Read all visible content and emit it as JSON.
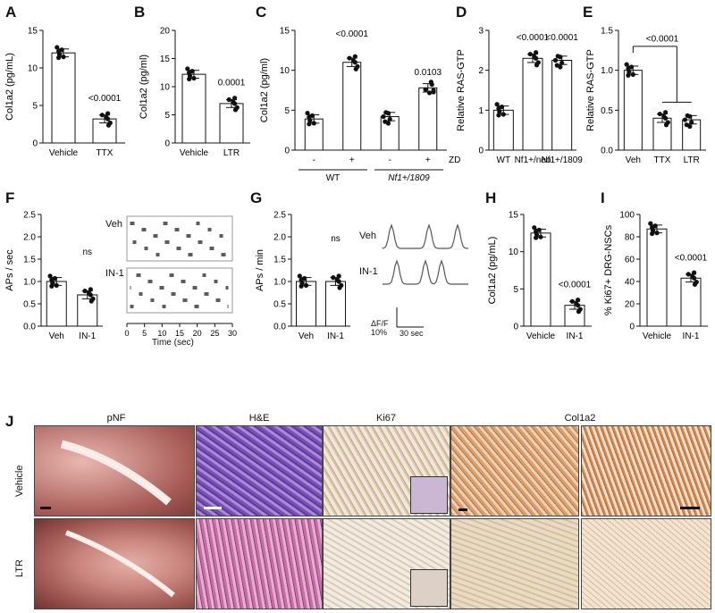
{
  "panels": {
    "A": {
      "label": "A",
      "ylabel": "Col1a2 (pg/mL)",
      "yticks": [
        "0",
        "5",
        "10",
        "15"
      ],
      "categories": [
        "Vehicle",
        "TTX"
      ],
      "pvalue": "<0.0001"
    },
    "B": {
      "label": "B",
      "ylabel": "Col1a2 (pg/ml)",
      "yticks": [
        "0",
        "5",
        "10",
        "15",
        "20"
      ],
      "categories": [
        "Vehicle",
        "LTR"
      ],
      "pvalue": "0.0001"
    },
    "C": {
      "label": "C",
      "ylabel": "Col1a2 (pg/ml)",
      "yticks": [
        "0",
        "5",
        "10",
        "15"
      ],
      "pvalues": [
        "<0.0001",
        "0.0103"
      ],
      "zd_signs": [
        "-",
        "+",
        "-",
        "+"
      ],
      "zd_label": "ZD",
      "groups": [
        "WT",
        "Nf1+/1809"
      ]
    },
    "D": {
      "label": "D",
      "ylabel": "Relative RAS-GTP",
      "yticks": [
        "0",
        "1",
        "2",
        "3"
      ],
      "categories": [
        "WT",
        "Nf1+/neo",
        "Nf1+/1809"
      ],
      "pvalues": [
        "<0.0001",
        "<0.0001"
      ]
    },
    "E": {
      "label": "E",
      "ylabel": "Relative RAS-GTP",
      "yticks": [
        "0.0",
        "0.5",
        "1.0",
        "1.5"
      ],
      "categories": [
        "Veh",
        "TTX",
        "LTR"
      ],
      "pvalue": "<0.0001"
    },
    "F": {
      "label": "F",
      "ylabel": "APs / sec",
      "yticks": [
        "0.0",
        "0.5",
        "1.0",
        "1.5",
        "2.0",
        "2.5"
      ],
      "categories": [
        "Veh",
        "IN-1"
      ],
      "sig": "ns",
      "raster_labels": [
        "Veh",
        "IN-1"
      ],
      "raster_xticks": [
        "0",
        "5",
        "10",
        "15",
        "20",
        "25",
        "30"
      ],
      "raster_xlabel": "Time (sec)"
    },
    "G": {
      "label": "G",
      "ylabel": "APs / min",
      "yticks": [
        "0.0",
        "0.5",
        "1.0",
        "1.5",
        "2.0",
        "2.5"
      ],
      "categories": [
        "Veh",
        "IN-1"
      ],
      "sig": "ns",
      "trace_labels": [
        "Veh",
        "IN-1"
      ],
      "scale_y": "ΔF/F 10%",
      "scale_x": "30 sec"
    },
    "H": {
      "label": "H",
      "ylabel": "Col1a2 (pg/mL)",
      "yticks": [
        "0",
        "5",
        "10",
        "15"
      ],
      "categories": [
        "Vehicle",
        "IN-1"
      ],
      "pvalue": "<0.0001"
    },
    "I": {
      "label": "I",
      "ylabel": "% Ki67+ DRG-NSCs",
      "yticks": [
        "0",
        "20",
        "40",
        "60",
        "80",
        "100"
      ],
      "categories": [
        "Vehicle",
        "IN-1"
      ],
      "pvalue": "<0.0001"
    },
    "J": {
      "label": "J",
      "columns": [
        "pNF",
        "H&E",
        "Ki67",
        "Col1a2"
      ],
      "rows": [
        "Vehicle",
        "LTR"
      ]
    }
  },
  "chart_data": [
    {
      "panel": "A",
      "type": "bar",
      "categories": [
        "Vehicle",
        "TTX"
      ],
      "values": [
        12.0,
        3.2
      ],
      "ylabel": "Col1a2 (pg/mL)",
      "ylim": [
        0,
        15
      ]
    },
    {
      "panel": "B",
      "type": "bar",
      "categories": [
        "Vehicle",
        "LTR"
      ],
      "values": [
        12.2,
        7.0
      ],
      "ylabel": "Col1a2 (pg/ml)",
      "ylim": [
        0,
        20
      ]
    },
    {
      "panel": "C",
      "type": "bar",
      "categories": [
        "WT -",
        "WT +",
        "Nf1 -",
        "Nf1 +"
      ],
      "values": [
        3.9,
        11.0,
        4.2,
        7.8
      ],
      "ylabel": "Col1a2 (pg/ml)",
      "ylim": [
        0,
        15
      ]
    },
    {
      "panel": "D",
      "type": "bar",
      "categories": [
        "WT",
        "Nf1+/neo",
        "Nf1+/1809"
      ],
      "values": [
        1.0,
        2.3,
        2.25
      ],
      "ylabel": "Relative RAS-GTP",
      "ylim": [
        0,
        3
      ]
    },
    {
      "panel": "E",
      "type": "bar",
      "categories": [
        "Veh",
        "TTX",
        "LTR"
      ],
      "values": [
        1.0,
        0.4,
        0.38
      ],
      "ylabel": "Relative RAS-GTP",
      "ylim": [
        0,
        1.5
      ]
    },
    {
      "panel": "F",
      "type": "bar",
      "categories": [
        "Veh",
        "IN-1"
      ],
      "values": [
        1.0,
        0.7
      ],
      "ylabel": "APs / sec",
      "ylim": [
        0,
        2.5
      ]
    },
    {
      "panel": "G",
      "type": "bar",
      "categories": [
        "Veh",
        "IN-1"
      ],
      "values": [
        1.0,
        1.0
      ],
      "ylabel": "APs / min",
      "ylim": [
        0,
        2.5
      ]
    },
    {
      "panel": "H",
      "type": "bar",
      "categories": [
        "Vehicle",
        "IN-1"
      ],
      "values": [
        12.5,
        2.8
      ],
      "ylabel": "Col1a2 (pg/mL)",
      "ylim": [
        0,
        15
      ]
    },
    {
      "panel": "I",
      "type": "bar",
      "categories": [
        "Vehicle",
        "IN-1"
      ],
      "values": [
        87,
        43
      ],
      "ylabel": "% Ki67+ DRG-NSCs",
      "ylim": [
        0,
        100
      ]
    }
  ]
}
